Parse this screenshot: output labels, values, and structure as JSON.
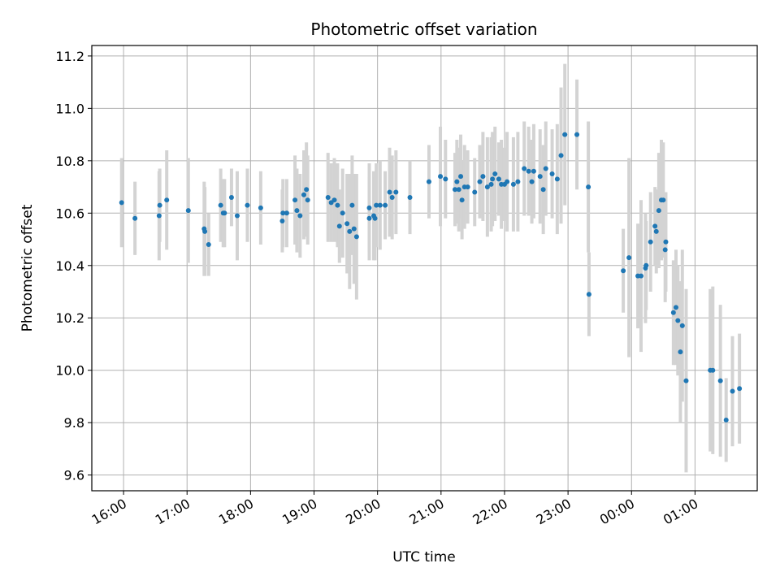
{
  "chart_data": {
    "type": "scatter",
    "title": "Photometric offset variation",
    "xlabel": "UTC time",
    "ylabel": "Photometric offset",
    "x_unit": "hours UTC (values above 24 are after midnight)",
    "xlim": [
      15.5,
      25.98
    ],
    "ylim": [
      9.54,
      11.24
    ],
    "grid": true,
    "legend": "none",
    "xticks": [
      {
        "value": 16,
        "label": "16:00"
      },
      {
        "value": 17,
        "label": "17:00"
      },
      {
        "value": 18,
        "label": "18:00"
      },
      {
        "value": 19,
        "label": "19:00"
      },
      {
        "value": 20,
        "label": "20:00"
      },
      {
        "value": 21,
        "label": "21:00"
      },
      {
        "value": 22,
        "label": "22:00"
      },
      {
        "value": 23,
        "label": "23:00"
      },
      {
        "value": 24,
        "label": "00:00"
      },
      {
        "value": 25,
        "label": "01:00"
      }
    ],
    "yticks": [
      {
        "value": 9.6,
        "label": "9.6"
      },
      {
        "value": 9.8,
        "label": "9.8"
      },
      {
        "value": 10.0,
        "label": "10.0"
      },
      {
        "value": 10.2,
        "label": "10.2"
      },
      {
        "value": 10.4,
        "label": "10.4"
      },
      {
        "value": 10.6,
        "label": "10.6"
      },
      {
        "value": 10.8,
        "label": "10.8"
      },
      {
        "value": 11.0,
        "label": "11.0"
      },
      {
        "value": 11.2,
        "label": "11.2"
      }
    ],
    "colors": {
      "point": "#1f77b4",
      "errorbar": "#d3d3d3",
      "grid": "#b0b0b0",
      "axes": "#000000"
    },
    "series": [
      {
        "points": [
          [
            15.97,
            10.64,
            0.17
          ],
          [
            16.18,
            10.58,
            0.14
          ],
          [
            16.56,
            10.59,
            0.17
          ],
          [
            16.57,
            10.63,
            0.14
          ],
          [
            16.68,
            10.65,
            0.19
          ],
          [
            17.02,
            10.61,
            0.2
          ],
          [
            17.27,
            10.54,
            0.18
          ],
          [
            17.28,
            10.53,
            0.17
          ],
          [
            17.34,
            10.48,
            0.12
          ],
          [
            17.53,
            10.63,
            0.14
          ],
          [
            17.57,
            10.6,
            0.13
          ],
          [
            17.59,
            10.6,
            0.13
          ],
          [
            17.7,
            10.66,
            0.11
          ],
          [
            17.79,
            10.59,
            0.17
          ],
          [
            17.95,
            10.63,
            0.14
          ],
          [
            18.16,
            10.62,
            0.14
          ],
          [
            18.5,
            10.57,
            0.12
          ],
          [
            18.51,
            10.6,
            0.13
          ],
          [
            18.57,
            10.6,
            0.13
          ],
          [
            18.7,
            10.65,
            0.17
          ],
          [
            18.73,
            10.61,
            0.16
          ],
          [
            18.78,
            10.59,
            0.16
          ],
          [
            18.84,
            10.67,
            0.17
          ],
          [
            18.88,
            10.69,
            0.18
          ],
          [
            18.9,
            10.65,
            0.17
          ],
          [
            19.22,
            10.66,
            0.17
          ],
          [
            19.27,
            10.64,
            0.15
          ],
          [
            19.32,
            10.65,
            0.16
          ],
          [
            19.37,
            10.63,
            0.16
          ],
          [
            19.4,
            10.55,
            0.14
          ],
          [
            19.45,
            10.6,
            0.17
          ],
          [
            19.52,
            10.56,
            0.19
          ],
          [
            19.56,
            10.53,
            0.22
          ],
          [
            19.6,
            10.63,
            0.19
          ],
          [
            19.63,
            10.54,
            0.21
          ],
          [
            19.67,
            10.51,
            0.24
          ],
          [
            19.87,
            10.58,
            0.16
          ],
          [
            19.87,
            10.62,
            0.17
          ],
          [
            19.94,
            10.59,
            0.17
          ],
          [
            19.96,
            10.58,
            0.16
          ],
          [
            19.98,
            10.63,
            0.16
          ],
          [
            20.04,
            10.63,
            0.17
          ],
          [
            20.12,
            10.63,
            0.13
          ],
          [
            20.19,
            10.68,
            0.17
          ],
          [
            20.23,
            10.66,
            0.16
          ],
          [
            20.29,
            10.68,
            0.16
          ],
          [
            20.51,
            10.66,
            0.14
          ],
          [
            20.81,
            10.72,
            0.14
          ],
          [
            20.99,
            10.74,
            0.19
          ],
          [
            21.07,
            10.73,
            0.15
          ],
          [
            21.22,
            10.69,
            0.14
          ],
          [
            21.25,
            10.72,
            0.16
          ],
          [
            21.28,
            10.69,
            0.16
          ],
          [
            21.31,
            10.74,
            0.16
          ],
          [
            21.33,
            10.65,
            0.15
          ],
          [
            21.37,
            10.7,
            0.16
          ],
          [
            21.42,
            10.7,
            0.14
          ],
          [
            21.53,
            10.68,
            0.13
          ],
          [
            21.61,
            10.72,
            0.14
          ],
          [
            21.66,
            10.74,
            0.17
          ],
          [
            21.73,
            10.7,
            0.19
          ],
          [
            21.79,
            10.71,
            0.18
          ],
          [
            21.81,
            10.73,
            0.18
          ],
          [
            21.85,
            10.75,
            0.18
          ],
          [
            21.91,
            10.73,
            0.14
          ],
          [
            21.95,
            10.71,
            0.17
          ],
          [
            22.0,
            10.71,
            0.14
          ],
          [
            22.04,
            10.72,
            0.19
          ],
          [
            22.14,
            10.71,
            0.18
          ],
          [
            22.21,
            10.72,
            0.19
          ],
          [
            22.31,
            10.77,
            0.18
          ],
          [
            22.38,
            10.76,
            0.17
          ],
          [
            22.43,
            10.72,
            0.16
          ],
          [
            22.46,
            10.76,
            0.18
          ],
          [
            22.56,
            10.74,
            0.18
          ],
          [
            22.61,
            10.69,
            0.17
          ],
          [
            22.65,
            10.77,
            0.18
          ],
          [
            22.75,
            10.75,
            0.17
          ],
          [
            22.83,
            10.73,
            0.21
          ],
          [
            22.89,
            10.82,
            0.26
          ],
          [
            22.95,
            10.9,
            0.27
          ],
          [
            23.14,
            10.9,
            0.21
          ],
          [
            23.32,
            10.7,
            0.25
          ],
          [
            23.33,
            10.29,
            0.16
          ],
          [
            23.87,
            10.38,
            0.16
          ],
          [
            23.96,
            10.43,
            0.38
          ],
          [
            24.1,
            10.36,
            0.2
          ],
          [
            24.15,
            10.36,
            0.29
          ],
          [
            24.22,
            10.39,
            0.21
          ],
          [
            24.23,
            10.4,
            0.17
          ],
          [
            24.3,
            10.49,
            0.19
          ],
          [
            24.37,
            10.55,
            0.15
          ],
          [
            24.39,
            10.53,
            0.16
          ],
          [
            24.43,
            10.61,
            0.22
          ],
          [
            24.47,
            10.65,
            0.23
          ],
          [
            24.5,
            10.65,
            0.22
          ],
          [
            24.53,
            10.46,
            0.2
          ],
          [
            24.54,
            10.49,
            0.19
          ],
          [
            24.66,
            10.22,
            0.2
          ],
          [
            24.7,
            10.24,
            0.22
          ],
          [
            24.73,
            10.19,
            0.21
          ],
          [
            24.77,
            10.07,
            0.27
          ],
          [
            24.8,
            10.17,
            0.29
          ],
          [
            24.86,
            9.96,
            0.35
          ],
          [
            25.24,
            10.0,
            0.31
          ],
          [
            25.28,
            10.0,
            0.32
          ],
          [
            25.4,
            9.96,
            0.29
          ],
          [
            25.49,
            9.81,
            0.16
          ],
          [
            25.59,
            9.92,
            0.21
          ],
          [
            25.7,
            9.93,
            0.21
          ]
        ]
      }
    ]
  }
}
